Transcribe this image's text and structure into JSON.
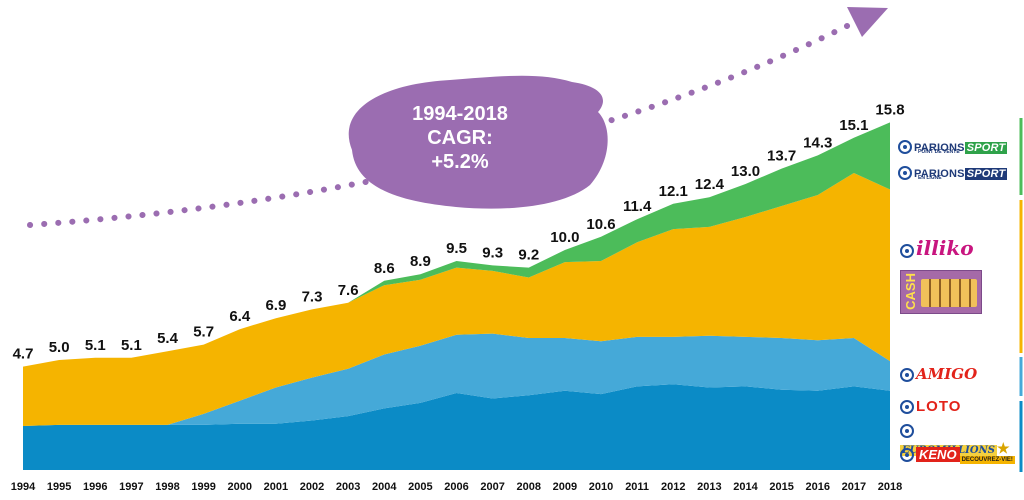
{
  "chart_data": {
    "type": "area",
    "stacked": true,
    "x": [
      "1994",
      "1995",
      "1996",
      "1997",
      "1998",
      "1999",
      "2000",
      "2001",
      "2002",
      "2003",
      "2004",
      "2005",
      "2006",
      "2007",
      "2008",
      "2009",
      "2010",
      "2011",
      "2012",
      "2013",
      "2014",
      "2015",
      "2016",
      "2017",
      "2018"
    ],
    "totals": [
      "4.7",
      "5.0",
      "5.1",
      "5.1",
      "5.4",
      "5.7",
      "6.4",
      "6.9",
      "7.3",
      "7.6",
      "8.6",
      "8.9",
      "9.5",
      "9.3",
      "9.2",
      "10.0",
      "10.6",
      "11.4",
      "12.1",
      "12.4",
      "13.0",
      "13.7",
      "14.3",
      "15.1",
      "15.8"
    ],
    "series": [
      {
        "color": "#0b8bc6",
        "values": [
          2.0,
          2.05,
          2.05,
          2.05,
          2.05,
          2.05,
          2.1,
          2.1,
          2.25,
          2.45,
          2.8,
          3.05,
          3.5,
          3.25,
          3.4,
          3.6,
          3.45,
          3.8,
          3.9,
          3.75,
          3.8,
          3.65,
          3.6,
          3.8,
          3.6
        ]
      },
      {
        "color": "#45a9d8",
        "values": [
          0,
          0,
          0,
          0,
          0,
          0.5,
          1.05,
          1.65,
          1.95,
          2.15,
          2.45,
          2.6,
          2.65,
          2.95,
          2.6,
          2.4,
          2.4,
          2.25,
          2.15,
          2.35,
          2.25,
          2.35,
          2.3,
          2.2,
          1.35
        ]
      },
      {
        "color": "#f5b400",
        "values": [
          2.7,
          2.95,
          3.05,
          3.05,
          3.35,
          3.15,
          3.25,
          3.15,
          3.1,
          3.0,
          3.15,
          3.0,
          3.05,
          2.85,
          2.75,
          3.45,
          3.65,
          4.3,
          4.9,
          4.95,
          5.45,
          6.0,
          6.6,
          7.5,
          7.8
        ]
      },
      {
        "color": "#4cbc5a",
        "values": [
          0,
          0,
          0,
          0,
          0,
          0,
          0,
          0,
          0,
          0,
          0.2,
          0.25,
          0.3,
          0.25,
          0.45,
          0.55,
          1.1,
          1.05,
          1.15,
          1.35,
          1.5,
          1.7,
          1.8,
          1.6,
          3.05
        ]
      }
    ],
    "ylim": [
      0,
      16.5
    ],
    "annotation": {
      "lines": [
        "1994-2018",
        "CAGR:",
        "+5.2%"
      ],
      "color": "#9b6db1"
    },
    "legend_placement": "right"
  },
  "legend": {
    "ps1_parions": "PARIONS",
    "ps1_sport": "SPORT",
    "ps1_sub": "POINT DE VENTE",
    "ps2_parions": "PARIONS",
    "ps2_sport": "SPORT",
    "ps2_sub": "EN LIGNE",
    "illiko": "illiko",
    "cash": "CASH",
    "amigo": "AMIGO",
    "loto": "LOTO",
    "euromillions": "EUROMILLIONS",
    "keno": "KENO",
    "keno_sub": "DECOUVREZ-VIE!"
  },
  "colors": {
    "bracket_green": "#4cbc5a",
    "bracket_yellow": "#f5b400",
    "bracket_light_blue": "#45a9d8",
    "bracket_blue": "#0b8bc6",
    "fdj_blue": "#1f4e9c"
  }
}
